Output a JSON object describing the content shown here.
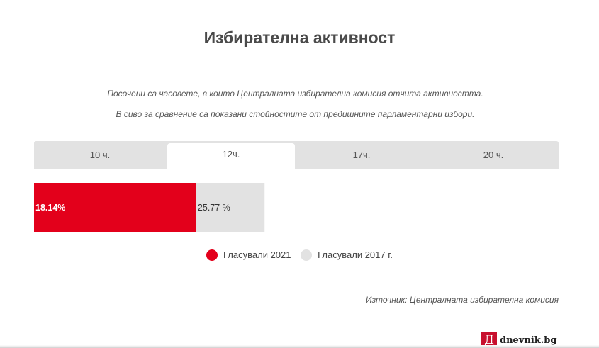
{
  "title": "Избирателна активност",
  "subtitle_1": "Посочени са часовете, в които Централната избирателна комисия отчита активността.",
  "subtitle_2": "В сиво за сравнение са показани стойностите от предишните парламентарни избори.",
  "tabs": [
    {
      "label": "10 ч.",
      "active": false
    },
    {
      "label": "12ч.",
      "active": true
    },
    {
      "label": "17ч.",
      "active": false
    },
    {
      "label": "20 ч.",
      "active": false
    }
  ],
  "chart_data": {
    "type": "bar",
    "orientation": "horizontal",
    "xlim": [
      0,
      100
    ],
    "series": [
      {
        "name": "Гласували 2021",
        "value": 18.14,
        "label": "18.14%",
        "color": "#e3001b"
      },
      {
        "name": "Гласували 2017 г.",
        "value": 25.77,
        "label": "25.77 %",
        "color": "#e2e2e2"
      }
    ]
  },
  "legend": [
    {
      "label": "Гласували 2021",
      "color": "#e3001b"
    },
    {
      "label": "Гласували 2017 г.",
      "color": "#e2e2e2"
    }
  ],
  "source": "Източник: Централната избирателна комисия",
  "logo": {
    "mark": "Д",
    "text": "dnevnik.bg"
  }
}
